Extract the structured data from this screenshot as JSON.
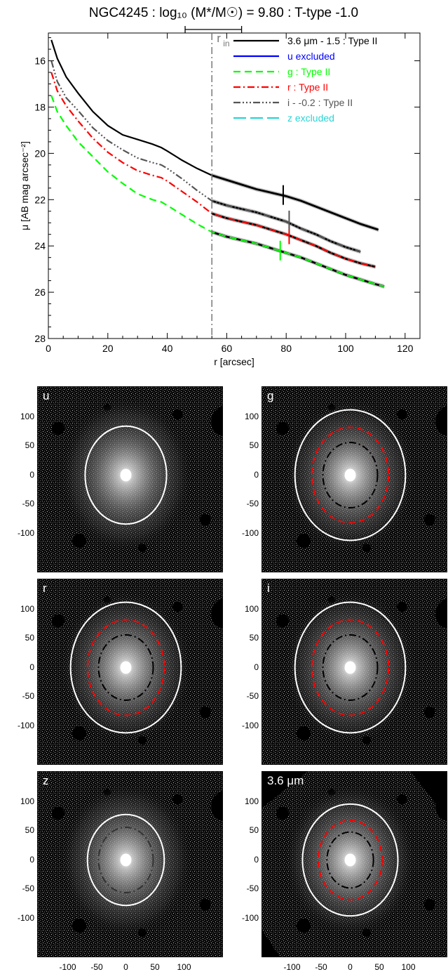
{
  "chart_data": [
    {
      "type": "line",
      "title": "NGC4245 : log₁₀ (M*/M☉) = 9.80 : T-type -1.0",
      "xlabel": "r [arcsec]",
      "ylabel": "μ [AB mag arcsec⁻²]",
      "xlim": [
        0,
        125
      ],
      "ylim": [
        28,
        14.8
      ],
      "y_inverted": true,
      "xticks": [
        "0",
        "20",
        "40",
        "60",
        "80",
        "100",
        "120"
      ],
      "yticks": [
        "16",
        "18",
        "20",
        "22",
        "24",
        "26",
        "28"
      ],
      "r_in": 55,
      "r_in_label": "r",
      "r_in_sub": "in",
      "r_in_range": [
        46,
        65
      ],
      "legend": [
        {
          "label": "3.6 μm - 1.5 : Type II",
          "color": "#000000",
          "dash": "solid"
        },
        {
          "label": "u excluded",
          "color": "#0000ff",
          "dash": "solid"
        },
        {
          "label": "g : Type II",
          "color": "#00ff00",
          "dash": "short"
        },
        {
          "label": "r : Type II",
          "color": "#ff0000",
          "dash": "dashdot"
        },
        {
          "label": "i - -0.2 : Type II",
          "color": "#555555",
          "dash": "dashdotdotdot"
        },
        {
          "label": "z excluded",
          "color": "#2ad4d4",
          "dash": "long"
        }
      ],
      "series": [
        {
          "name": "3.6 μm - 1.5 : Type II",
          "color": "#000000",
          "dash": "solid",
          "x": [
            1,
            3,
            6,
            10,
            15,
            20,
            25,
            30,
            35,
            38,
            40,
            45,
            50,
            55,
            60,
            65,
            70,
            75,
            80,
            85,
            90,
            95,
            100,
            105,
            111
          ],
          "y": [
            15.1,
            15.9,
            16.7,
            17.4,
            18.2,
            18.8,
            19.2,
            19.4,
            19.6,
            19.75,
            19.9,
            20.3,
            20.65,
            20.95,
            21.15,
            21.35,
            21.55,
            21.7,
            21.85,
            22.05,
            22.3,
            22.55,
            22.8,
            23.05,
            23.3
          ],
          "break_r": 79,
          "break_mu": 21.8
        },
        {
          "name": "g : Type II",
          "color": "#00ff00",
          "dash": "short",
          "x": [
            1,
            3,
            6,
            10,
            15,
            20,
            25,
            30,
            35,
            38,
            40,
            45,
            50,
            55,
            60,
            65,
            70,
            75,
            80,
            85,
            90,
            95,
            100,
            105,
            110,
            113
          ],
          "y": [
            17.5,
            18.2,
            18.8,
            19.5,
            20.15,
            20.8,
            21.3,
            21.75,
            22.0,
            22.1,
            22.25,
            22.65,
            23.05,
            23.4,
            23.6,
            23.75,
            23.9,
            24.1,
            24.3,
            24.5,
            24.75,
            25.0,
            25.25,
            25.45,
            25.65,
            25.75
          ],
          "break_r": 78,
          "break_mu": 24.2
        },
        {
          "name": "r : Type II",
          "color": "#ff0000",
          "dash": "dashdot",
          "x": [
            1,
            3,
            6,
            10,
            15,
            20,
            25,
            30,
            35,
            38,
            40,
            45,
            50,
            55,
            60,
            65,
            70,
            75,
            80,
            85,
            90,
            95,
            100,
            105,
            110
          ],
          "y": [
            16.5,
            17.3,
            17.95,
            18.6,
            19.35,
            19.95,
            20.4,
            20.75,
            20.95,
            21.05,
            21.2,
            21.65,
            22.1,
            22.6,
            22.8,
            22.95,
            23.1,
            23.3,
            23.5,
            23.75,
            24.0,
            24.3,
            24.55,
            24.75,
            24.9
          ],
          "break_r": 81,
          "break_mu": 23.5
        },
        {
          "name": "i - -0.2 : Type II",
          "color": "#555555",
          "dash": "dashdotdotdot",
          "x": [
            1,
            3,
            6,
            10,
            15,
            20,
            25,
            30,
            35,
            38,
            40,
            45,
            50,
            55,
            60,
            65,
            70,
            75,
            80,
            85,
            90,
            95,
            100,
            105
          ],
          "y": [
            16.0,
            16.9,
            17.6,
            18.15,
            18.9,
            19.45,
            19.85,
            20.2,
            20.4,
            20.5,
            20.65,
            21.1,
            21.6,
            22.05,
            22.25,
            22.4,
            22.55,
            22.75,
            22.95,
            23.25,
            23.5,
            23.8,
            24.05,
            24.25
          ],
          "break_r": 81,
          "break_mu": 22.9
        }
      ]
    },
    {
      "type": "image",
      "label": "u",
      "xticks": [
        "-100",
        "-50",
        "0",
        "50",
        "100"
      ],
      "yticks": [
        "100",
        "50",
        "0",
        "-50",
        "-100"
      ],
      "ellipses": [
        {
          "color": "#ffffff",
          "dash": "solid",
          "a": 70,
          "b": 84
        }
      ]
    },
    {
      "type": "image",
      "label": "g",
      "xticks": [
        "-100",
        "-50",
        "0",
        "50",
        "100"
      ],
      "yticks": [
        "100",
        "50",
        "0",
        "-50",
        "-100"
      ],
      "ellipses": [
        {
          "color": "#ffffff",
          "dash": "solid",
          "a": 95,
          "b": 112
        },
        {
          "color": "#ff0000",
          "dash": "dashed",
          "a": 66,
          "b": 82
        },
        {
          "color": "#000000",
          "dash": "dashdot",
          "a": 47,
          "b": 56
        }
      ]
    },
    {
      "type": "image",
      "label": "r",
      "xticks": [
        "-100",
        "-50",
        "0",
        "50",
        "100"
      ],
      "yticks": [
        "100",
        "50",
        "0",
        "-50",
        "-100"
      ],
      "ellipses": [
        {
          "color": "#ffffff",
          "dash": "solid",
          "a": 95,
          "b": 112
        },
        {
          "color": "#ff0000",
          "dash": "dashed",
          "a": 66,
          "b": 82
        },
        {
          "color": "#000000",
          "dash": "dashdot",
          "a": 47,
          "b": 56
        }
      ]
    },
    {
      "type": "image",
      "label": "i",
      "xticks": [
        "-100",
        "-50",
        "0",
        "50",
        "100"
      ],
      "yticks": [
        "100",
        "50",
        "0",
        "-50",
        "-100"
      ],
      "ellipses": [
        {
          "color": "#ffffff",
          "dash": "solid",
          "a": 95,
          "b": 112
        },
        {
          "color": "#ff0000",
          "dash": "dashed",
          "a": 66,
          "b": 82
        },
        {
          "color": "#000000",
          "dash": "dashdot",
          "a": 47,
          "b": 56
        }
      ]
    },
    {
      "type": "image",
      "label": "z",
      "xticks": [
        "-100",
        "-50",
        "0",
        "50",
        "100"
      ],
      "yticks": [
        "100",
        "50",
        "0",
        "-50",
        "-100"
      ],
      "ellipses": [
        {
          "color": "#ffffff",
          "dash": "solid",
          "a": 66,
          "b": 78
        },
        {
          "color": "#333333",
          "dash": "dashdot",
          "a": 47,
          "b": 56
        }
      ]
    },
    {
      "type": "image",
      "label": "3.6 μm",
      "xticks": [
        "-100",
        "-50",
        "0",
        "50",
        "100"
      ],
      "yticks": [
        "100",
        "50",
        "0",
        "-50",
        "-100"
      ],
      "ellipses": [
        {
          "color": "#ffffff",
          "dash": "solid",
          "a": 82,
          "b": 96
        },
        {
          "color": "#ff0000",
          "dash": "dashed",
          "a": 55,
          "b": 68
        },
        {
          "color": "#000000",
          "dash": "dashdot",
          "a": 40,
          "b": 48
        }
      ]
    }
  ]
}
